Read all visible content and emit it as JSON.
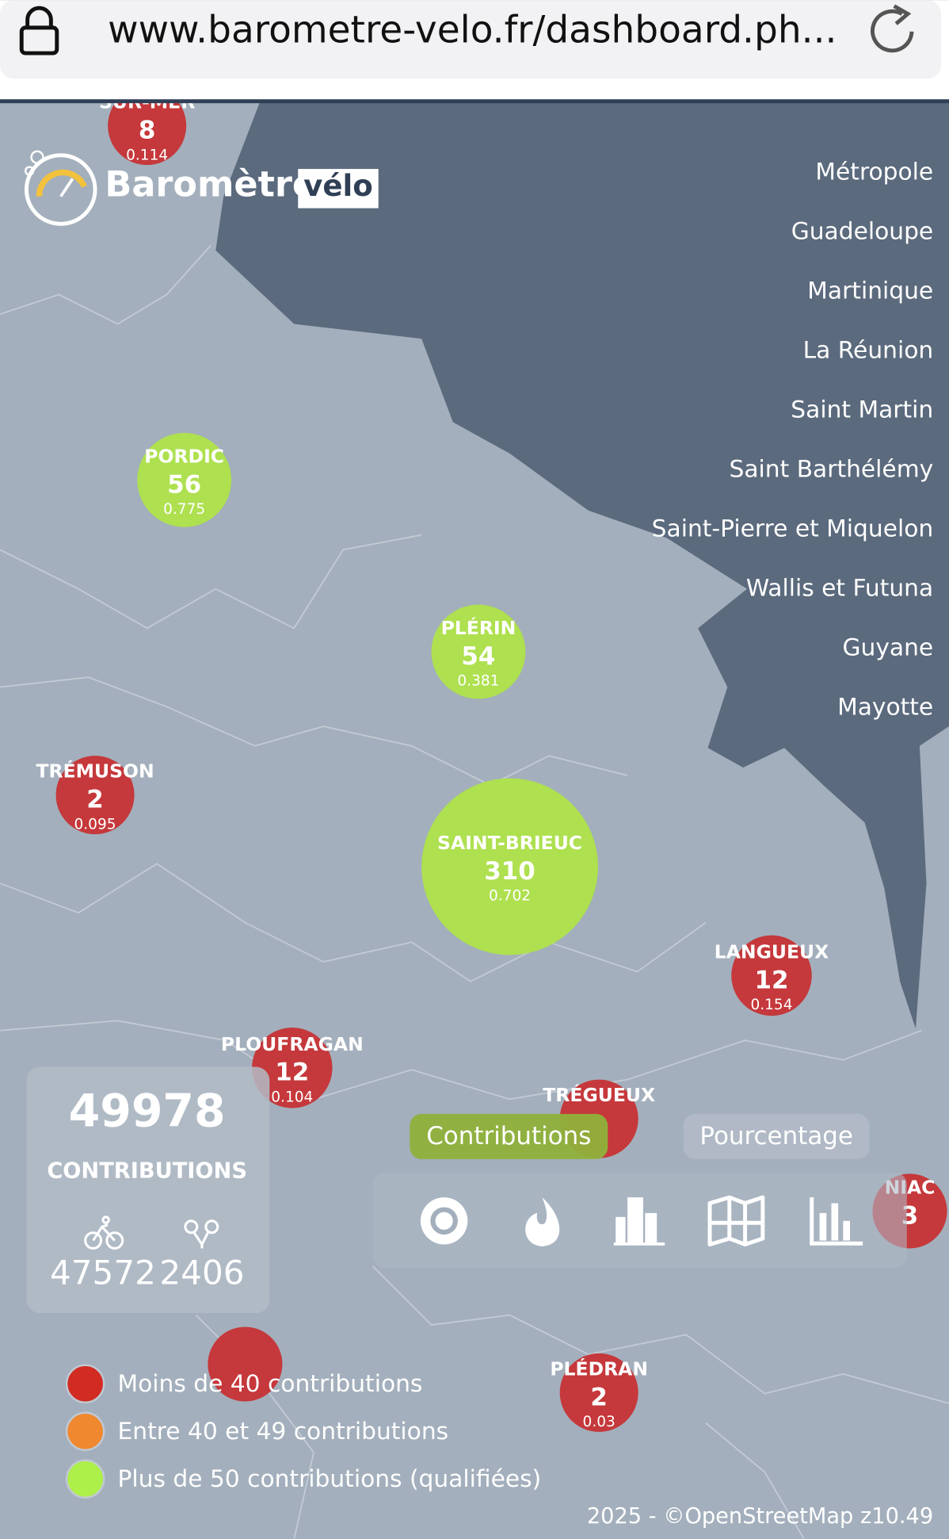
{
  "browser": {
    "url": "www.barometre-velo.fr/dashboard.ph..."
  },
  "logo": {
    "name": "Baromètre",
    "badge": "vélo"
  },
  "regions": [
    "Métropole",
    "Guadeloupe",
    "Martinique",
    "La Réunion",
    "Saint Martin",
    "Saint Barthélémy",
    "Saint-Pierre et Miquelon",
    "Wallis et Futuna",
    "Guyane",
    "Mayotte"
  ],
  "markers": [
    {
      "name": "SUR-MER",
      "count": 8,
      "ratio": 0.114,
      "color": "#c5383b"
    },
    {
      "name": "PORDIC",
      "count": 56,
      "ratio": 0.775,
      "color": "#aee04f"
    },
    {
      "name": "PLÉRIN",
      "count": 54,
      "ratio": 0.381,
      "color": "#aee04f"
    },
    {
      "name": "TRÉMUSON",
      "count": 2,
      "ratio": 0.095,
      "color": "#c5383b"
    },
    {
      "name": "SAINT-BRIEUC",
      "count": 310,
      "ratio": 0.702,
      "color": "#aee04f"
    },
    {
      "name": "LANGUEUX",
      "count": 12,
      "ratio": 0.154,
      "color": "#c5383b"
    },
    {
      "name": "PLOUFRAGAN",
      "count": 12,
      "ratio": 0.104,
      "color": "#c5383b"
    },
    {
      "name": "TRÉGUEUX",
      "color": "#c5383b"
    },
    {
      "name": "NIAC",
      "count": 3,
      "color": "#c5383b"
    },
    {
      "name": "PLÉDRAN",
      "count": 2,
      "ratio": 0.03,
      "color": "#c5383b"
    }
  ],
  "stats": {
    "total": 49978,
    "label": "CONTRIBUTIONS",
    "bike": 47572,
    "other": 2406
  },
  "tabs": [
    "Contributions",
    "Pourcentage"
  ],
  "legend": [
    {
      "label": "Moins de 40 contributions",
      "color": "#d12b22"
    },
    {
      "label": "Entre 40 et 49 contributions",
      "color": "#f0882f"
    },
    {
      "label": "Plus de 50 contributions (qualifiées)",
      "color": "#aef04a"
    }
  ],
  "footer": "2025 - ©OpenStreetMap z10.49"
}
